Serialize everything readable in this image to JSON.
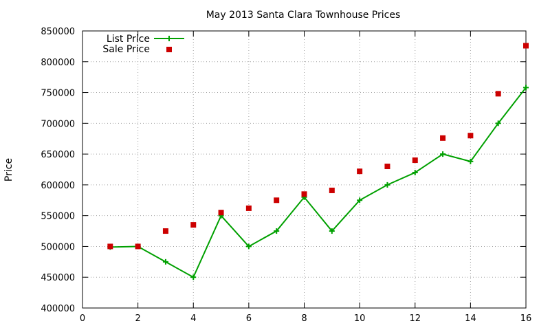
{
  "chart_data": {
    "type": "line",
    "title": "May 2013 Santa Clara Townhouse Prices",
    "ylabel": "Price",
    "xlabel": "",
    "xlim": [
      0,
      16
    ],
    "ylim": [
      400000,
      850000
    ],
    "xticks": [
      0,
      2,
      4,
      6,
      8,
      10,
      12,
      14,
      16
    ],
    "yticks": [
      400000,
      450000,
      500000,
      550000,
      600000,
      650000,
      700000,
      750000,
      800000,
      850000
    ],
    "grid": true,
    "legend_position": "top-left",
    "series": [
      {
        "name": "List Price",
        "style": "line+cross",
        "color": "#00a000",
        "points": [
          [
            1,
            499000
          ],
          [
            2,
            500000
          ],
          [
            3,
            475000
          ],
          [
            4,
            450000
          ],
          [
            5,
            550000
          ],
          [
            6,
            500000
          ],
          [
            7,
            525000
          ],
          [
            8,
            580000
          ],
          [
            9,
            525000
          ],
          [
            10,
            575000
          ],
          [
            11,
            600000
          ],
          [
            12,
            620000
          ],
          [
            13,
            650000
          ],
          [
            14,
            638000
          ],
          [
            15,
            700000
          ],
          [
            16,
            758000
          ]
        ]
      },
      {
        "name": "Sale Price",
        "style": "square-points",
        "color": "#cc0000",
        "points": [
          [
            1,
            500000
          ],
          [
            2,
            500000
          ],
          [
            3,
            525000
          ],
          [
            4,
            535000
          ],
          [
            5,
            555000
          ],
          [
            6,
            562000
          ],
          [
            7,
            575000
          ],
          [
            8,
            585000
          ],
          [
            9,
            591000
          ],
          [
            10,
            622000
          ],
          [
            11,
            630000
          ],
          [
            12,
            640000
          ],
          [
            13,
            676000
          ],
          [
            14,
            680000
          ],
          [
            15,
            748000
          ],
          [
            16,
            826000
          ]
        ]
      }
    ]
  }
}
